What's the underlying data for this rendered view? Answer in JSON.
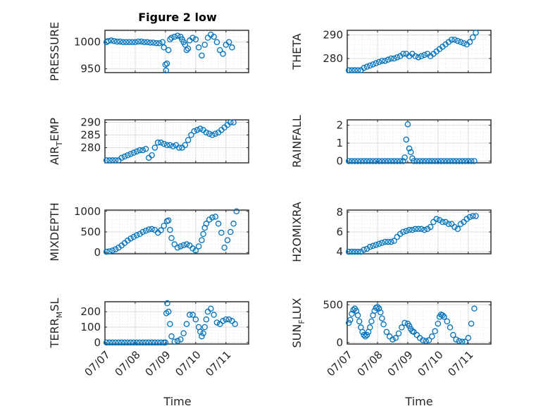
{
  "figure": {
    "title": "Figure 2 low"
  },
  "colors": {
    "marker": "#0072bd",
    "axes": "#262626",
    "grid": "#dcdcdc",
    "background": "#ffffff"
  },
  "chart_data": [
    {
      "id": "pressure",
      "type": "scatter",
      "ylabel": "PRESSURE",
      "ylim": [
        943,
        1022
      ],
      "yticks": [
        950,
        1000
      ],
      "ytick_labels": [
        "950",
        "1000"
      ],
      "xlim": [
        1,
        5.75
      ],
      "xticks": [
        1,
        2,
        3,
        4,
        5
      ],
      "xtick_labels": [
        "07/07",
        "07/08",
        "07/09",
        "07/10",
        "07/11"
      ],
      "grid": true,
      "marker": "circle",
      "x": [
        1.05,
        1.1,
        1.2,
        1.3,
        1.4,
        1.5,
        1.6,
        1.7,
        1.8,
        1.9,
        2.0,
        2.1,
        2.2,
        2.3,
        2.4,
        2.5,
        2.6,
        2.7,
        2.8,
        2.9,
        2.95,
        3.0,
        3.02,
        3.05,
        3.1,
        3.15,
        3.2,
        3.3,
        3.4,
        3.5,
        3.55,
        3.6,
        3.65,
        3.7,
        3.75,
        3.8,
        3.9,
        4.0,
        4.1,
        4.2,
        4.3,
        4.4,
        4.5,
        4.6,
        4.7,
        4.8,
        4.9,
        5.0,
        5.1,
        5.2
      ],
      "y": [
        1000,
        1002,
        1003,
        1002,
        1001,
        1001,
        1000,
        1000,
        1000,
        1000,
        1000,
        1001,
        1001,
        1000,
        1000,
        999,
        999,
        998,
        998,
        1000,
        990,
        958,
        947,
        960,
        985,
        1005,
        1008,
        1010,
        1012,
        1010,
        1005,
        1000,
        995,
        985,
        988,
        1003,
        1008,
        1005,
        990,
        975,
        995,
        1008,
        1014,
        1010,
        1000,
        985,
        978,
        995,
        1000,
        990
      ]
    },
    {
      "id": "theta",
      "type": "scatter",
      "ylabel": "THETA",
      "ylim": [
        274,
        292
      ],
      "yticks": [
        280,
        290
      ],
      "ytick_labels": [
        "280",
        "290"
      ],
      "xlim": [
        1,
        5.75
      ],
      "xticks": [
        1,
        2,
        3,
        4,
        5
      ],
      "xtick_labels": [
        "07/07",
        "07/08",
        "07/09",
        "07/10",
        "07/11"
      ],
      "grid": true,
      "marker": "circle",
      "x": [
        1.05,
        1.15,
        1.25,
        1.35,
        1.45,
        1.55,
        1.65,
        1.75,
        1.85,
        1.95,
        2.05,
        2.15,
        2.25,
        2.35,
        2.45,
        2.55,
        2.65,
        2.75,
        2.85,
        2.95,
        3.05,
        3.15,
        3.25,
        3.35,
        3.45,
        3.55,
        3.65,
        3.75,
        3.85,
        3.95,
        4.05,
        4.15,
        4.25,
        4.35,
        4.45,
        4.55,
        4.65,
        4.75,
        4.85,
        4.95,
        5.05,
        5.15,
        5.25
      ],
      "y": [
        275,
        275,
        275,
        275,
        275,
        276,
        276.5,
        277,
        277.5,
        278,
        278.5,
        279,
        279,
        279.5,
        280,
        280,
        280.5,
        281,
        282,
        282,
        281,
        282,
        281,
        280.5,
        281,
        281.5,
        282,
        281,
        282,
        283,
        284,
        285,
        286,
        287,
        288,
        288,
        287.5,
        287,
        286.5,
        286,
        287,
        289,
        291
      ]
    },
    {
      "id": "air_temp",
      "type": "scatter",
      "ylabel": "AIR_TEMP",
      "ylim": [
        274,
        291
      ],
      "yticks": [
        280,
        285,
        290
      ],
      "ytick_labels": [
        "280",
        "285",
        "290"
      ],
      "xlim": [
        1,
        5.75
      ],
      "xticks": [
        1,
        2,
        3,
        4,
        5
      ],
      "xtick_labels": [
        "07/07",
        "07/08",
        "07/09",
        "07/10",
        "07/11"
      ],
      "grid": true,
      "marker": "circle",
      "x": [
        1.05,
        1.15,
        1.25,
        1.35,
        1.45,
        1.55,
        1.65,
        1.75,
        1.85,
        1.95,
        2.05,
        2.15,
        2.25,
        2.35,
        2.45,
        2.55,
        2.65,
        2.75,
        2.85,
        2.95,
        3.05,
        3.15,
        3.25,
        3.35,
        3.45,
        3.55,
        3.65,
        3.75,
        3.85,
        3.95,
        4.05,
        4.15,
        4.25,
        4.35,
        4.45,
        4.55,
        4.65,
        4.75,
        4.85,
        4.95,
        5.05,
        5.15,
        5.25
      ],
      "y": [
        275,
        275,
        275,
        275,
        275,
        276,
        276.5,
        277,
        277.5,
        278,
        278.5,
        279,
        279,
        279.5,
        276,
        277,
        280,
        282,
        282,
        281.5,
        281,
        281,
        280.5,
        281,
        280,
        280,
        281,
        283,
        285,
        286.5,
        287,
        287.5,
        287,
        286,
        285.5,
        285,
        285.5,
        286,
        287,
        288,
        289,
        290,
        290
      ]
    },
    {
      "id": "rainfall",
      "type": "scatter",
      "ylabel": "RAINFALL",
      "ylim": [
        -0.1,
        2.3
      ],
      "yticks": [
        0,
        1,
        2
      ],
      "ytick_labels": [
        "0",
        "1",
        "2"
      ],
      "xlim": [
        1,
        5.75
      ],
      "xticks": [
        1,
        2,
        3,
        4,
        5
      ],
      "xtick_labels": [
        "07/07",
        "07/08",
        "07/09",
        "07/10",
        "07/11"
      ],
      "grid": true,
      "marker": "circle",
      "x": [
        1.05,
        1.15,
        1.25,
        1.35,
        1.45,
        1.55,
        1.65,
        1.75,
        1.85,
        1.95,
        2.05,
        2.15,
        2.25,
        2.35,
        2.45,
        2.55,
        2.65,
        2.75,
        2.85,
        2.9,
        2.95,
        3.0,
        3.05,
        3.1,
        3.15,
        3.2,
        3.3,
        3.4,
        3.5,
        3.6,
        3.7,
        3.8,
        3.9,
        4.0,
        4.1,
        4.2,
        4.3,
        4.4,
        4.5,
        4.6,
        4.7,
        4.8,
        4.9,
        5.0,
        5.1,
        5.2
      ],
      "y": [
        0,
        0,
        0,
        0,
        0,
        0,
        0,
        0,
        0,
        0,
        0,
        0,
        0,
        0,
        0,
        0,
        0,
        0,
        0,
        0.2,
        1.2,
        2.05,
        0.7,
        0.5,
        0.15,
        0,
        0,
        0,
        0,
        0,
        0,
        0,
        0,
        0,
        0,
        0,
        0,
        0,
        0,
        0,
        0,
        0,
        0,
        0,
        0,
        0
      ]
    },
    {
      "id": "mixdepth",
      "type": "scatter",
      "ylabel": "MIXDEPTH",
      "ylim": [
        -30,
        1030
      ],
      "yticks": [
        0,
        500,
        1000
      ],
      "ytick_labels": [
        "0",
        "500",
        "1000"
      ],
      "xlim": [
        1,
        5.75
      ],
      "xticks": [
        1,
        2,
        3,
        4,
        5
      ],
      "xtick_labels": [
        "07/07",
        "07/08",
        "07/09",
        "07/10",
        "07/11"
      ],
      "grid": true,
      "marker": "circle",
      "x": [
        1.05,
        1.15,
        1.25,
        1.35,
        1.45,
        1.55,
        1.65,
        1.75,
        1.85,
        1.95,
        2.05,
        2.15,
        2.25,
        2.35,
        2.45,
        2.55,
        2.65,
        2.75,
        2.85,
        2.95,
        3.05,
        3.1,
        3.15,
        3.2,
        3.3,
        3.4,
        3.5,
        3.6,
        3.7,
        3.8,
        3.9,
        4.0,
        4.1,
        4.2,
        4.25,
        4.3,
        4.35,
        4.45,
        4.55,
        4.65,
        4.75,
        4.85,
        4.95,
        5.05,
        5.15,
        5.25,
        5.35
      ],
      "y": [
        20,
        30,
        50,
        80,
        120,
        170,
        230,
        290,
        340,
        380,
        420,
        450,
        500,
        530,
        560,
        570,
        550,
        480,
        540,
        650,
        760,
        780,
        550,
        350,
        200,
        120,
        150,
        180,
        200,
        170,
        100,
        50,
        150,
        300,
        450,
        600,
        700,
        800,
        850,
        870,
        700,
        480,
        120,
        300,
        500,
        700,
        1000
      ]
    },
    {
      "id": "h2omixra",
      "type": "scatter",
      "ylabel": "H2OMIXRA",
      "ylim": [
        3.8,
        8.2
      ],
      "yticks": [
        4,
        6,
        8
      ],
      "ytick_labels": [
        "4",
        "6",
        "8"
      ],
      "xlim": [
        1,
        5.75
      ],
      "xticks": [
        1,
        2,
        3,
        4,
        5
      ],
      "xtick_labels": [
        "07/07",
        "07/08",
        "07/09",
        "07/10",
        "07/11"
      ],
      "grid": true,
      "marker": "circle",
      "x": [
        1.05,
        1.15,
        1.25,
        1.35,
        1.45,
        1.55,
        1.65,
        1.75,
        1.85,
        1.95,
        2.05,
        2.15,
        2.25,
        2.35,
        2.45,
        2.55,
        2.65,
        2.75,
        2.85,
        2.95,
        3.05,
        3.15,
        3.25,
        3.35,
        3.45,
        3.55,
        3.65,
        3.75,
        3.85,
        3.95,
        4.05,
        4.15,
        4.25,
        4.35,
        4.45,
        4.55,
        4.65,
        4.75,
        4.85,
        4.95,
        5.05,
        5.15,
        5.25
      ],
      "y": [
        4,
        4,
        4,
        4,
        4,
        4.2,
        4.3,
        4.5,
        4.6,
        4.7,
        4.8,
        4.9,
        5,
        5,
        5,
        5.1,
        5.5,
        5.8,
        6,
        6.1,
        6.2,
        6.2,
        6.3,
        6.3,
        6.3,
        6.2,
        6.3,
        6.5,
        7,
        7.3,
        7.2,
        7,
        7,
        6.8,
        6.8,
        6.5,
        6.3,
        6.8,
        7,
        7.3,
        7.5,
        7.6,
        7.6
      ]
    },
    {
      "id": "terr_msl",
      "type": "scatter",
      "ylabel": "TERR_MSL",
      "ylim": [
        -10,
        265
      ],
      "yticks": [
        0,
        100,
        200
      ],
      "ytick_labels": [
        "0",
        "100",
        "200"
      ],
      "xlim": [
        1,
        5.75
      ],
      "xticks": [
        1,
        2,
        3,
        4,
        5
      ],
      "xtick_labels": [
        "07/07",
        "07/08",
        "07/09",
        "07/10",
        "07/11"
      ],
      "grid": true,
      "marker": "circle",
      "x": [
        1.05,
        1.15,
        1.25,
        1.35,
        1.45,
        1.55,
        1.65,
        1.75,
        1.85,
        1.95,
        2.05,
        2.15,
        2.25,
        2.35,
        2.45,
        2.55,
        2.65,
        2.75,
        2.85,
        2.95,
        3.0,
        3.03,
        3.06,
        3.1,
        3.15,
        3.2,
        3.3,
        3.4,
        3.5,
        3.6,
        3.7,
        3.8,
        3.9,
        4.0,
        4.1,
        4.15,
        4.2,
        4.25,
        4.3,
        4.35,
        4.4,
        4.5,
        4.6,
        4.7,
        4.8,
        4.9,
        5.0,
        5.1,
        5.2,
        5.3
      ],
      "y": [
        0,
        0,
        0,
        0,
        0,
        0,
        0,
        0,
        0,
        0,
        0,
        0,
        0,
        0,
        0,
        0,
        0,
        0,
        0,
        0,
        0,
        190,
        255,
        200,
        120,
        40,
        5,
        10,
        20,
        60,
        120,
        180,
        180,
        150,
        100,
        70,
        40,
        60,
        100,
        150,
        200,
        220,
        180,
        130,
        120,
        140,
        150,
        150,
        140,
        120
      ]
    },
    {
      "id": "sun_flux",
      "type": "scatter",
      "ylabel": "SUN_FLUX",
      "ylim": [
        -20,
        540
      ],
      "yticks": [
        0,
        500
      ],
      "ytick_labels": [
        "0",
        "500"
      ],
      "xlim": [
        1,
        5.75
      ],
      "xticks": [
        1,
        2,
        3,
        4,
        5
      ],
      "xtick_labels": [
        "07/07",
        "07/08",
        "07/09",
        "07/10",
        "07/11"
      ],
      "grid": true,
      "marker": "circle",
      "x": [
        1.05,
        1.1,
        1.15,
        1.2,
        1.25,
        1.3,
        1.35,
        1.4,
        1.45,
        1.5,
        1.55,
        1.6,
        1.65,
        1.7,
        1.75,
        1.8,
        1.85,
        1.9,
        1.95,
        2.0,
        2.05,
        2.1,
        2.15,
        2.2,
        2.3,
        2.4,
        2.5,
        2.6,
        2.7,
        2.8,
        2.9,
        3.0,
        3.05,
        3.1,
        3.15,
        3.2,
        3.3,
        3.4,
        3.5,
        3.6,
        3.7,
        3.8,
        3.9,
        4.0,
        4.05,
        4.1,
        4.15,
        4.2,
        4.3,
        4.4,
        4.5,
        4.6,
        4.7,
        4.8,
        4.9,
        5.0,
        5.1,
        5.2
      ],
      "y": [
        260,
        300,
        380,
        430,
        450,
        420,
        360,
        280,
        200,
        140,
        100,
        80,
        100,
        140,
        200,
        280,
        360,
        420,
        460,
        470,
        450,
        400,
        320,
        240,
        140,
        80,
        40,
        60,
        120,
        200,
        260,
        250,
        220,
        180,
        150,
        140,
        100,
        60,
        30,
        20,
        30,
        80,
        150,
        250,
        340,
        370,
        360,
        340,
        280,
        200,
        100,
        40,
        20,
        10,
        10,
        60,
        250,
        450
      ]
    }
  ],
  "axis_labels": {
    "time_left": "Time",
    "time_right": "Time"
  }
}
